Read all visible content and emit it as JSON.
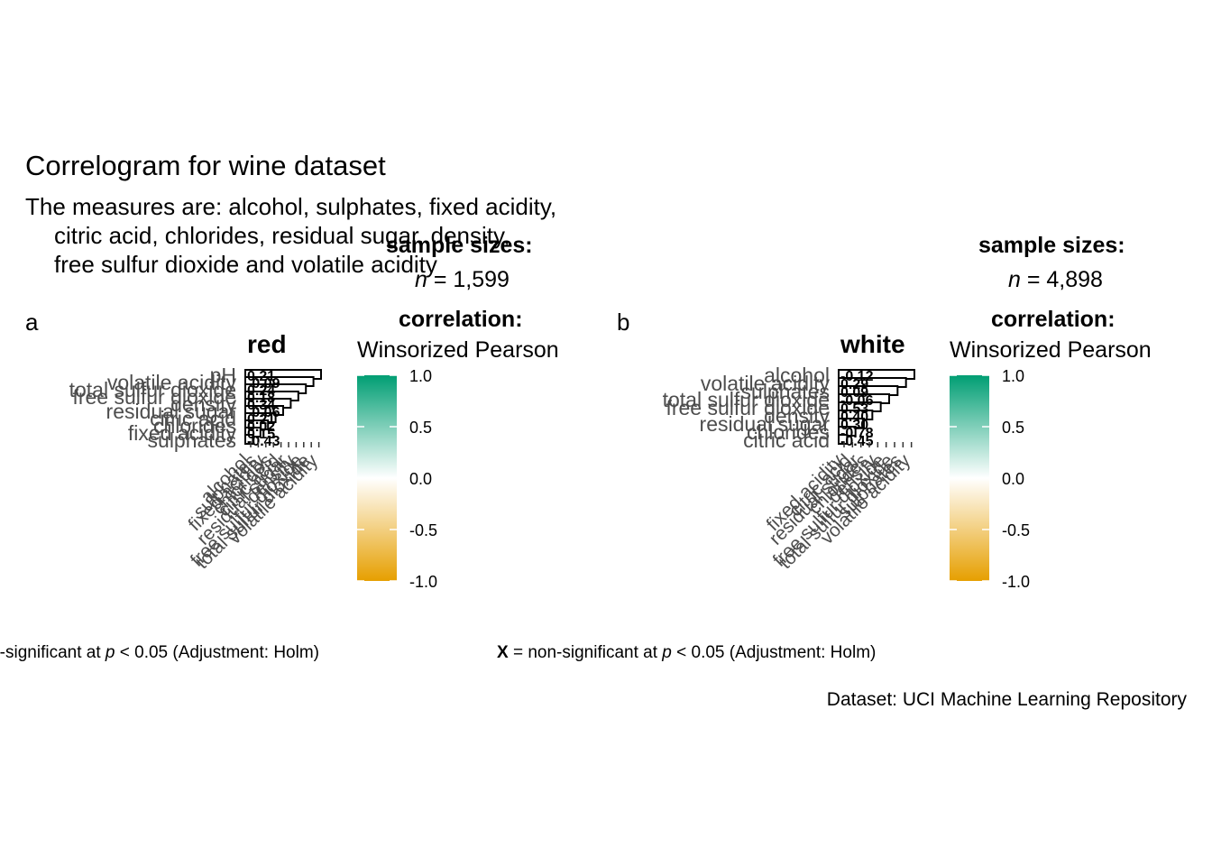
{
  "title": "Correlogram for wine dataset",
  "subtitle": [
    "The measures are: alcohol, sulphates, fixed acidity,",
    "citric acid, chlorides, residual sugar, density,",
    "free sulfur dioxide and volatile acidity"
  ],
  "caption": "Dataset: UCI Machine Learning Repository",
  "panels": [
    {
      "tag": "a",
      "title": "red",
      "legend": {
        "sample_heading": "sample sizes:",
        "n_symbol": "n",
        "n_value": " = 1,599",
        "corr_heading": "correlation:",
        "corr_type": "Winsorized Pearson",
        "ticks": [
          "1.0",
          "0.5",
          "0.0",
          "-0.5",
          "-1.0"
        ]
      },
      "footnote_sig": "X = non-significant at ",
      "footnote_p": "p",
      "footnote_rest": " < 0.05 (Adjustment: Holm)"
    },
    {
      "tag": "b",
      "title": "white",
      "legend": {
        "sample_heading": "sample sizes:",
        "n_symbol": "n",
        "n_value": " = 4,898",
        "corr_heading": "correlation:",
        "corr_type": "Winsorized Pearson",
        "ticks": [
          "1.0",
          "0.5",
          "0.0",
          "-0.5",
          "-1.0"
        ]
      },
      "footnote_x": "X",
      "footnote_sig": " = non-significant at ",
      "footnote_p": "p",
      "footnote_rest": " < 0.05 (Adjustment: Holm)"
    }
  ],
  "colors": {
    "high": "#009E73",
    "mid": "#FFFFFF",
    "low": "#E69F00"
  },
  "chart_data": [
    {
      "type": "heatmap",
      "title": "red",
      "y_labels": [
        "pH",
        "volatile acidity",
        "total sulfur dioxide",
        "free sulfur dioxide",
        "density",
        "residual sugar",
        "citric acid",
        "chlorides",
        "fixed acidity",
        "sulphates"
      ],
      "x_labels": [
        "alcohol",
        "sulphates",
        "fixed acidity",
        "chlorides",
        "citric acid",
        "residual sugar",
        "density",
        "free sulfur dioxide",
        "total sulfur dioxide",
        "volatile acidity"
      ],
      "cell_labels": [
        "0.21",
        "-0.09",
        "0.24",
        "0.18",
        "0.34",
        "-0.06",
        "0.21",
        "0.02",
        "0.15",
        "-0.43"
      ],
      "legend_range": [
        -1,
        1
      ]
    },
    {
      "type": "heatmap",
      "title": "white",
      "y_labels": [
        "alcohol",
        "volatile acidity",
        "sulphates",
        "total sulfur dioxide",
        "free sulfur dioxide",
        "density",
        "residual sugar",
        "chlorides",
        "citric acid"
      ],
      "x_labels": [
        "fixed acidity",
        "citric acid",
        "residual sugar",
        "chlorides",
        "density",
        "free sulfur dioxide",
        "total sulfur dioxide",
        "sulphates",
        "volatile acidity"
      ],
      "cell_labels": [
        "-0.12",
        "0.29",
        "0.09",
        "-0.06",
        "0.53",
        "0.40",
        "0.30",
        "-0.78",
        "-0.45"
      ],
      "legend_range": [
        -1,
        1
      ]
    }
  ]
}
